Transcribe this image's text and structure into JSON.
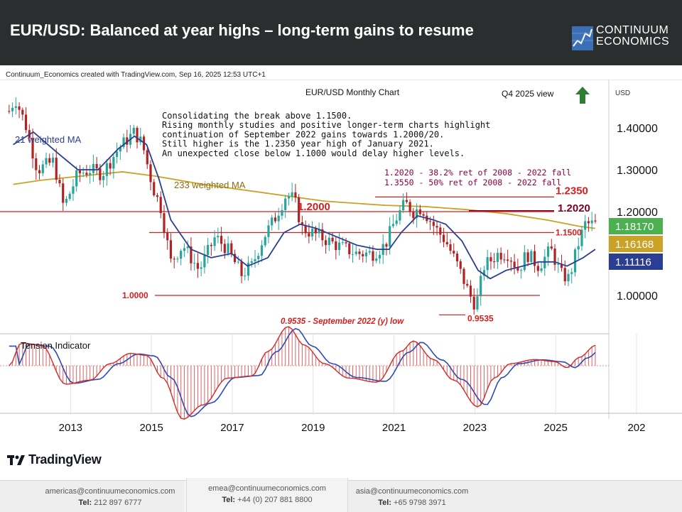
{
  "header": {
    "title": "EUR/USD: Balanced at year highs – long-term gains to resume",
    "logo_text": "CONTINUUM\nECONOMICS"
  },
  "credit": "Continuum_Economics created with TradingView.com, Sep 16, 2025 12:53 UTC+1",
  "colors": {
    "header_bg": "#2b2e2f",
    "up": "#26a69a",
    "down": "#b22222",
    "ma21": "#2c3e91",
    "ma233": "#c9a227",
    "level": "#d42020",
    "fall_text": "#8b0046",
    "green_arrow": "#2e7d32"
  },
  "chart_data": {
    "type": "candlestick",
    "title": "EUR/USD Monthly Chart",
    "view_label": "Q4 2025 view",
    "currency_label": "USD",
    "x_ticks": [
      "2013",
      "2015",
      "2017",
      "2019",
      "2021",
      "2023",
      "2025",
      "202"
    ],
    "y_ticks": [
      "1.40000",
      "1.30000",
      "1.20000",
      "1.00000"
    ],
    "ylim": [
      0.9,
      1.52
    ],
    "price_badges": [
      {
        "label": "1.18170",
        "color": "#4caf50"
      },
      {
        "label": "1.16168",
        "color": "#c9a227"
      },
      {
        "label": "1.11116",
        "color": "#2c3e91"
      }
    ],
    "levels": [
      {
        "value": 1.235,
        "label": "1.2350"
      },
      {
        "value": 1.202,
        "label": "1.2020"
      },
      {
        "value": 1.2,
        "label": "1.2000"
      },
      {
        "value": 1.15,
        "label": "1.1500"
      },
      {
        "value": 1.0,
        "label": "1.0000"
      },
      {
        "value": 0.9535,
        "label": "0.9535"
      }
    ],
    "annotations": {
      "comment": [
        "Consolidating the break above 1.1500.",
        "Rising monthly studies and positive longer-term charts highlight",
        "continuation of September 2022 gains towards 1.2000/20.",
        "Still higher is the 1.2350 year high of January 2021.",
        "An unexpected close below 1.1000 would delay higher levels."
      ],
      "fall_notes": [
        "1.2020 - 38.2% ret of 2008 - 2022 fall",
        "1.3550 - 50% ret of 2008 - 2022 fall"
      ],
      "low_note": "0.9535 - September 2022 (y) low",
      "ma21_label": "21 weighted MA",
      "ma233_label": "233 weighted MA",
      "indicator_label": "Tension Indicator"
    },
    "series": [
      {
        "name": "21 weighted MA",
        "x": [
          2011.3,
          2011.8,
          2012.4,
          2012.9,
          2013.4,
          2013.9,
          2014.3,
          2014.6,
          2014.9,
          2015.2,
          2015.7,
          2016.2,
          2016.7,
          2017.1,
          2017.6,
          2018.0,
          2018.4,
          2018.8,
          2019.3,
          2019.8,
          2020.3,
          2020.6,
          2020.9,
          2021.3,
          2021.7,
          2022.0,
          2022.4,
          2022.8,
          2023.1,
          2023.5,
          2023.9,
          2024.3,
          2024.7,
          2025.0,
          2025.4,
          2025.7
        ],
        "values": [
          1.36,
          1.39,
          1.34,
          1.3,
          1.3,
          1.35,
          1.38,
          1.36,
          1.28,
          1.18,
          1.11,
          1.09,
          1.1,
          1.07,
          1.09,
          1.15,
          1.17,
          1.16,
          1.14,
          1.12,
          1.11,
          1.11,
          1.15,
          1.19,
          1.18,
          1.17,
          1.13,
          1.06,
          1.04,
          1.06,
          1.07,
          1.08,
          1.08,
          1.07,
          1.09,
          1.11
        ]
      },
      {
        "name": "233 weighted MA",
        "x": [
          2011.3,
          2012.0,
          2013.0,
          2014.0,
          2014.8,
          2016.0,
          2017.5,
          2019.0,
          2020.5,
          2021.5,
          2022.5,
          2023.5,
          2024.5,
          2025.3,
          2025.7
        ],
        "values": [
          1.265,
          1.275,
          1.285,
          1.295,
          1.285,
          1.265,
          1.245,
          1.225,
          1.215,
          1.212,
          1.205,
          1.195,
          1.18,
          1.165,
          1.16
        ]
      }
    ]
  },
  "footer": [
    {
      "email": "americas@continuumeconomics.com",
      "tel_label": "Tel:",
      "tel": "212 897 6777"
    },
    {
      "email": "emea@continuumeconomics.com",
      "tel_label": "Tel:",
      "tel": "+44 (0) 207 881 8800"
    },
    {
      "email": "asia@continuumeconomics.com",
      "tel_label": "Tel:",
      "tel": "+65 9798 3971"
    }
  ],
  "tradingview": "TradingView"
}
